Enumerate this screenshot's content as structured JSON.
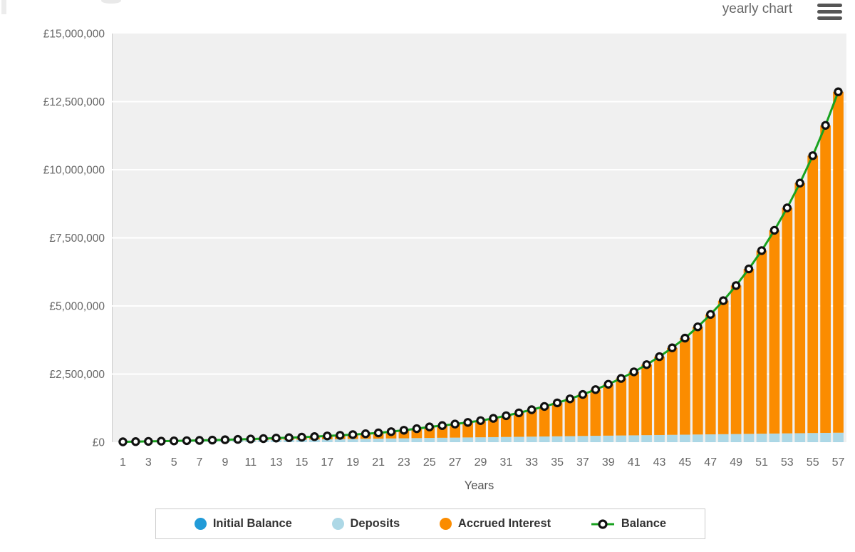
{
  "header": {
    "view_mode_label": "yearly chart",
    "menu_icon": "hamburger-icon"
  },
  "chart_data": {
    "type": "bar",
    "subtype": "stacked-bars-with-line-overlay",
    "xlabel": "Years",
    "x_min": 1,
    "x_max": 57,
    "x_ticks": [
      1,
      3,
      5,
      7,
      9,
      11,
      13,
      15,
      17,
      19,
      21,
      23,
      25,
      27,
      29,
      31,
      33,
      35,
      37,
      39,
      41,
      43,
      45,
      47,
      49,
      51,
      53,
      55,
      57
    ],
    "ylim": [
      0,
      15000000
    ],
    "y_tick_values": [
      0,
      2500000,
      5000000,
      7500000,
      10000000,
      12500000,
      15000000
    ],
    "y_tick_labels": [
      "£0",
      "£2,500,000",
      "£5,000,000",
      "£7,500,000",
      "£10,000,000",
      "£12,500,000",
      "£15,000,000"
    ],
    "grid": true,
    "plot_background": "#f0f0f0",
    "gridline_color": "#ffffff",
    "axis_text_color": "#666666",
    "legend_position": "bottom",
    "initial_balance": 5000,
    "deposit_per_year": 6000,
    "deposits_cumulative": [
      6000,
      12000,
      18000,
      24000,
      30000,
      36000,
      42000,
      48000,
      54000,
      60000,
      66000,
      72000,
      78000,
      84000,
      90000,
      96000,
      102000,
      108000,
      114000,
      120000,
      126000,
      132000,
      138000,
      144000,
      150000,
      156000,
      162000,
      168000,
      174000,
      180000,
      186000,
      192000,
      198000,
      204000,
      210000,
      216000,
      222000,
      228000,
      234000,
      240000,
      246000,
      252000,
      258000,
      264000,
      270000,
      276000,
      282000,
      288000,
      294000,
      300000,
      306000,
      312000,
      318000,
      324000,
      330000,
      336000,
      342000
    ],
    "balance": [
      12300,
      19900,
      28200,
      37500,
      48000,
      56200,
      65700,
      76900,
      90000,
      101900,
      115400,
      130700,
      148000,
      164900,
      183700,
      204700,
      228000,
      251900,
      278400,
      307600,
      340000,
      385200,
      436300,
      494300,
      560000,
      610300,
      665100,
      724800,
      790000,
      875300,
      969900,
      1074700,
      1190000,
      1310400,
      1443000,
      1589100,
      1750000,
      1928300,
      2124800,
      2341300,
      2580000,
      2845700,
      3138800,
      3462100,
      3820000,
      4231800,
      4688000,
      5193400,
      5750000,
      6358900,
      7032300,
      7777100,
      8600000,
      9509900,
      10516100,
      11628700,
      12860000
    ],
    "series": [
      {
        "name": "Initial Balance",
        "type": "bar",
        "color": "#219bd8"
      },
      {
        "name": "Deposits",
        "type": "bar",
        "color": "#add8e6"
      },
      {
        "name": "Accrued Interest",
        "type": "bar",
        "color": "#fb8c00"
      },
      {
        "name": "Balance",
        "type": "line",
        "color": "#18a21f",
        "marker": "white-circle-black-ring"
      }
    ]
  },
  "legend": {
    "items": [
      {
        "label": "Initial Balance",
        "swatch": "circle",
        "color": "#219bd8"
      },
      {
        "label": "Deposits",
        "swatch": "circle",
        "color": "#add8e6"
      },
      {
        "label": "Accrued Interest",
        "swatch": "circle",
        "color": "#fb8c00"
      },
      {
        "label": "Balance",
        "swatch": "line-marker",
        "color": "#18a21f"
      }
    ]
  }
}
